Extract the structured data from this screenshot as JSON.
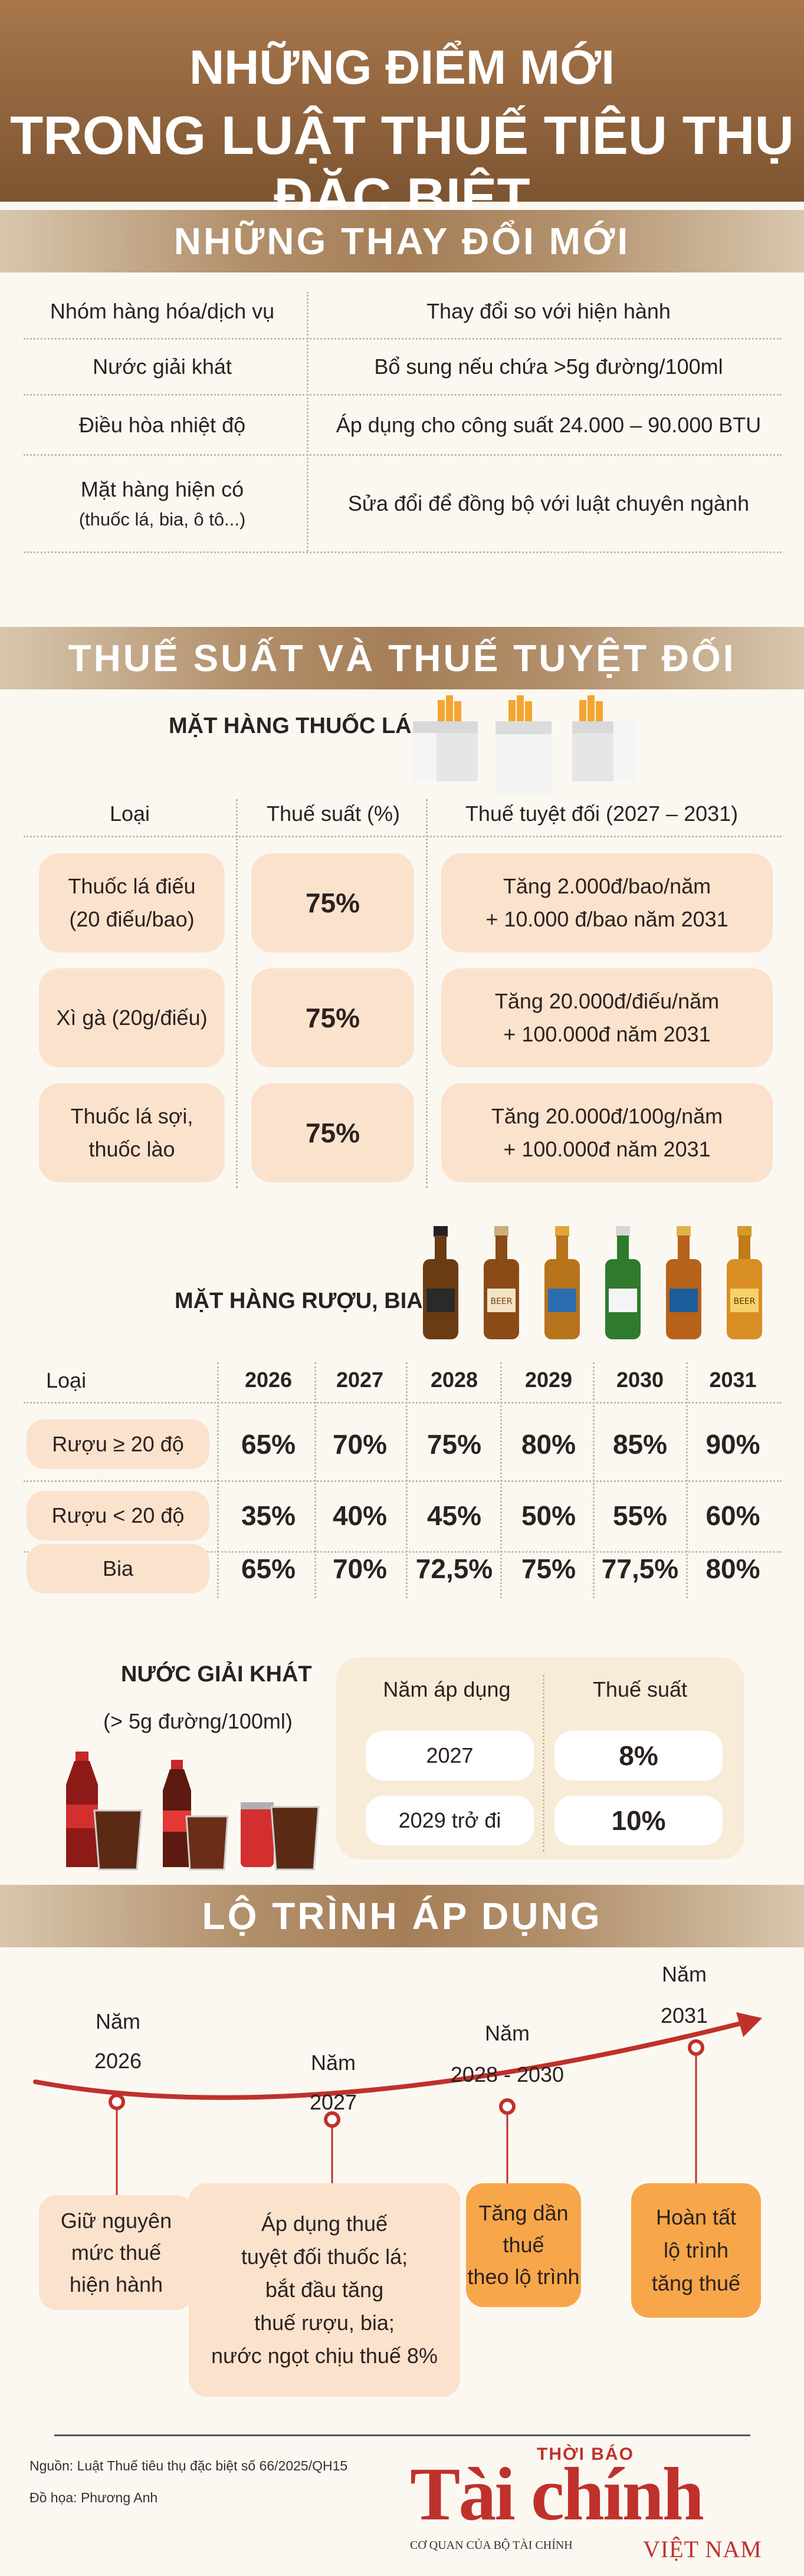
{
  "header": {
    "title_line1": "NHỮNG ĐIỂM MỚI",
    "title_line2": "TRONG LUẬT THUẾ TIÊU THỤ ĐẶC BIỆT"
  },
  "section1": {
    "title": "NHỮNG THAY ĐỔI MỚI",
    "col_group": "Nhóm hàng hóa/dịch vụ",
    "col_change": "Thay đổi so với hiện hành",
    "rows": [
      {
        "group": "Nước giải khát",
        "change": "Bổ sung nếu chứa >5g đường/100ml"
      },
      {
        "group": "Điều hòa nhiệt độ",
        "change": "Áp dụng cho công suất 24.000 – 90.000 BTU"
      },
      {
        "group": "Mặt hàng hiện có",
        "group_sub": "(thuốc lá, bia, ô tô...)",
        "change": "Sửa đổi để đồng bộ với luật chuyên ngành"
      }
    ]
  },
  "section2": {
    "title": "THUẾ SUẤT VÀ THUẾ TUYỆT ĐỐI",
    "tobacco": {
      "heading": "MẶT HÀNG THUỐC LÁ",
      "col_type": "Loại",
      "col_rate": "Thuế suất (%)",
      "col_abs": "Thuế tuyệt đối (2027 – 2031)",
      "rows": [
        {
          "type_l1": "Thuốc lá điếu",
          "type_l2": "(20 điếu/bao)",
          "rate": "75%",
          "abs_l1": "Tăng 2.000đ/bao/năm",
          "abs_l2": "+ 10.000 đ/bao năm 2031"
        },
        {
          "type_l1": "Xì gà (20g/điếu)",
          "type_l2": "",
          "rate": "75%",
          "abs_l1": "Tăng 20.000đ/điếu/năm",
          "abs_l2": "+ 100.000đ năm 2031"
        },
        {
          "type_l1": "Thuốc lá sợi,",
          "type_l2": "thuốc lào",
          "rate": "75%",
          "abs_l1": "Tăng 20.000đ/100g/năm",
          "abs_l2": "+ 100.000đ năm 2031"
        }
      ]
    },
    "alcohol": {
      "heading": "MẶT HÀNG RƯỢU, BIA",
      "col_type": "Loại",
      "years": [
        "2026",
        "2027",
        "2028",
        "2029",
        "2030",
        "2031"
      ],
      "rows": [
        {
          "type": "Rượu  ≥ 20 độ",
          "values": [
            "65%",
            "70%",
            "75%",
            "80%",
            "85%",
            "90%"
          ]
        },
        {
          "type": "Rượu  < 20 độ",
          "values": [
            "35%",
            "40%",
            "45%",
            "50%",
            "55%",
            "60%"
          ]
        },
        {
          "type": "Bia",
          "values": [
            "65%",
            "70%",
            "72,5%",
            "75%",
            "77,5%",
            "80%"
          ]
        }
      ],
      "beer_label": "BEER"
    },
    "softdrink": {
      "heading": "NƯỚC GIẢI KHÁT",
      "subheading": "(> 5g đường/100ml)",
      "col_year": "Năm áp dụng",
      "col_rate": "Thuế suất",
      "rows": [
        {
          "year": "2027",
          "rate": "8%"
        },
        {
          "year": "2029 trở đi",
          "rate": "10%"
        }
      ]
    }
  },
  "section3": {
    "title": "LỘ TRÌNH ÁP DỤNG",
    "milestones": [
      {
        "year_l1": "Năm",
        "year_l2": "2026",
        "desc": [
          "Giữ nguyên",
          "mức thuế",
          "hiện hành"
        ]
      },
      {
        "year_l1": "Năm",
        "year_l2": "2027",
        "desc": [
          "Áp dụng thuế",
          "tuyệt đối thuốc lá;",
          "bắt đầu tăng",
          "thuế rượu, bia;",
          "nước ngọt chịu thuế 8%"
        ]
      },
      {
        "year_l1": "Năm",
        "year_l2": "2028 - 2030",
        "desc": [
          "Tăng dần",
          "thuế",
          "theo lộ trình"
        ]
      },
      {
        "year_l1": "Năm",
        "year_l2": "2031",
        "desc": [
          "Hoàn tất",
          "lộ trình",
          "tăng thuế"
        ]
      }
    ]
  },
  "footer": {
    "source": "Nguồn: Luật Thuế tiêu thụ đặc biệt số 66/2025/QH15",
    "design": "Đồ họa: Phương Anh",
    "logo_top": "THỜI BÁO",
    "logo_main": "Tài chính",
    "logo_sub": "CƠ QUAN CỦA BỘ TÀI CHÍNH",
    "logo_country": "VIỆT NAM"
  },
  "colors": {
    "brown": "#8b5e36",
    "peach": "#fbe2cd",
    "orange": "#f7a64a",
    "red": "#c0312b",
    "cream": "#f8ecd8"
  }
}
